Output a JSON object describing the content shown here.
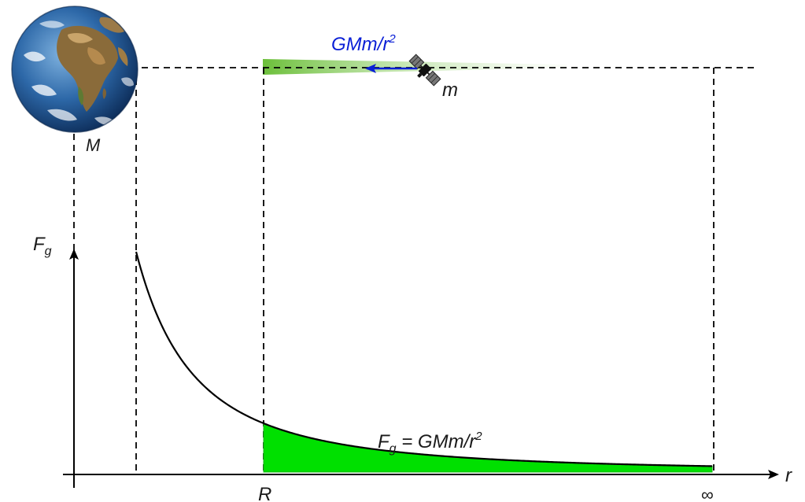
{
  "labels": {
    "force_vector": "GMm/r",
    "force_vector_exp": "2",
    "satellite_mass": "m",
    "earth_mass": "M",
    "y_axis_main": "F",
    "y_axis_sub": "g",
    "x_axis": "r",
    "x_tick_R": "R",
    "x_tick_inf": "∞",
    "formula_main": "F",
    "formula_sub": "g",
    "formula_rest": " = GMm/r",
    "formula_exp": "2"
  },
  "icons": {
    "planet": "earth-globe",
    "satellite": "satellite",
    "force_arrow": "arrow-left"
  },
  "colors": {
    "force_arrow": "#0a1fd6",
    "shade_area": "#00e000",
    "shade_area_stroke": "#18b018",
    "band_start": "#6cbf3a",
    "band_end": "#e8f5df",
    "axis": "#000000",
    "curve": "#000000",
    "dashed_guides": "#000000"
  },
  "chart_data": {
    "type": "line",
    "function": "Fg = GMm/r^2",
    "xlabel": "r",
    "ylabel": "Fg",
    "x_ticks": [
      "R",
      "∞"
    ],
    "shaded_region": "from R to ∞ under the curve",
    "grid": false,
    "legend": "none"
  }
}
